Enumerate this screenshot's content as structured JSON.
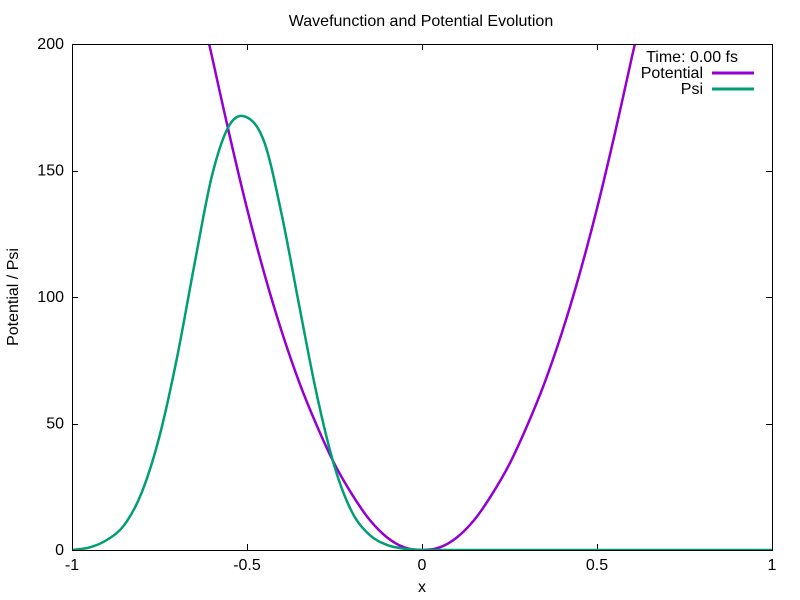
{
  "chart_data": {
    "type": "line",
    "title": "Wavefunction and Potential Evolution",
    "xlabel": "x",
    "ylabel": "Potential / Psi",
    "xlim": [
      -1,
      1
    ],
    "ylim": [
      0,
      200
    ],
    "x_ticks": [
      -1,
      -0.5,
      0,
      0.5,
      1
    ],
    "y_ticks": [
      0,
      50,
      100,
      150,
      200
    ],
    "grid": false,
    "legend_position": "top-right",
    "annotation": "Time: 0.00 fs",
    "series": [
      {
        "name": "Potential",
        "color": "#9400d3",
        "x": [
          -0.61,
          -0.6,
          -0.55,
          -0.5,
          -0.45,
          -0.4,
          -0.35,
          -0.3,
          -0.25,
          -0.2,
          -0.15,
          -0.1,
          -0.05,
          0,
          0.05,
          0.1,
          0.15,
          0.2,
          0.25,
          0.3,
          0.35,
          0.4,
          0.45,
          0.5,
          0.55,
          0.6,
          0.61
        ],
        "y": [
          201,
          195,
          164,
          135,
          109,
          86,
          66,
          49,
          34,
          22,
          12,
          5,
          1,
          0,
          1,
          5,
          12,
          22,
          34,
          49,
          66,
          86,
          109,
          135,
          164,
          195,
          201
        ]
      },
      {
        "name": "Psi",
        "color": "#009e73",
        "x": [
          -1,
          -0.95,
          -0.9,
          -0.85,
          -0.8,
          -0.75,
          -0.7,
          -0.65,
          -0.6,
          -0.55,
          -0.5,
          -0.45,
          -0.4,
          -0.35,
          -0.3,
          -0.25,
          -0.2,
          -0.15,
          -0.1,
          -0.05,
          0,
          0.05,
          0.1,
          0.2,
          0.4,
          0.6,
          0.8,
          1
        ],
        "y": [
          0,
          1,
          4,
          10,
          23,
          45,
          76,
          113,
          148,
          168,
          171,
          161,
          132,
          96,
          61,
          33,
          15,
          6,
          2,
          0.5,
          0,
          0,
          0,
          0,
          0,
          0,
          0,
          0
        ]
      }
    ]
  }
}
